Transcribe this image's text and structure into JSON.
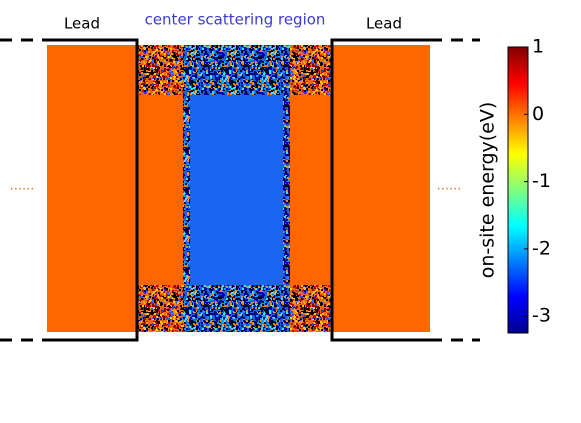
{
  "labels": {
    "lead_left": "Lead",
    "center": "center scattering region",
    "lead_right": "Lead",
    "dots_left": "......",
    "dots_right": "......"
  },
  "colorbar": {
    "label": "on-site energy(eV)",
    "clim": [
      -3.25,
      1
    ],
    "ticks": [
      1,
      0,
      -1,
      -2,
      -3
    ]
  }
}
